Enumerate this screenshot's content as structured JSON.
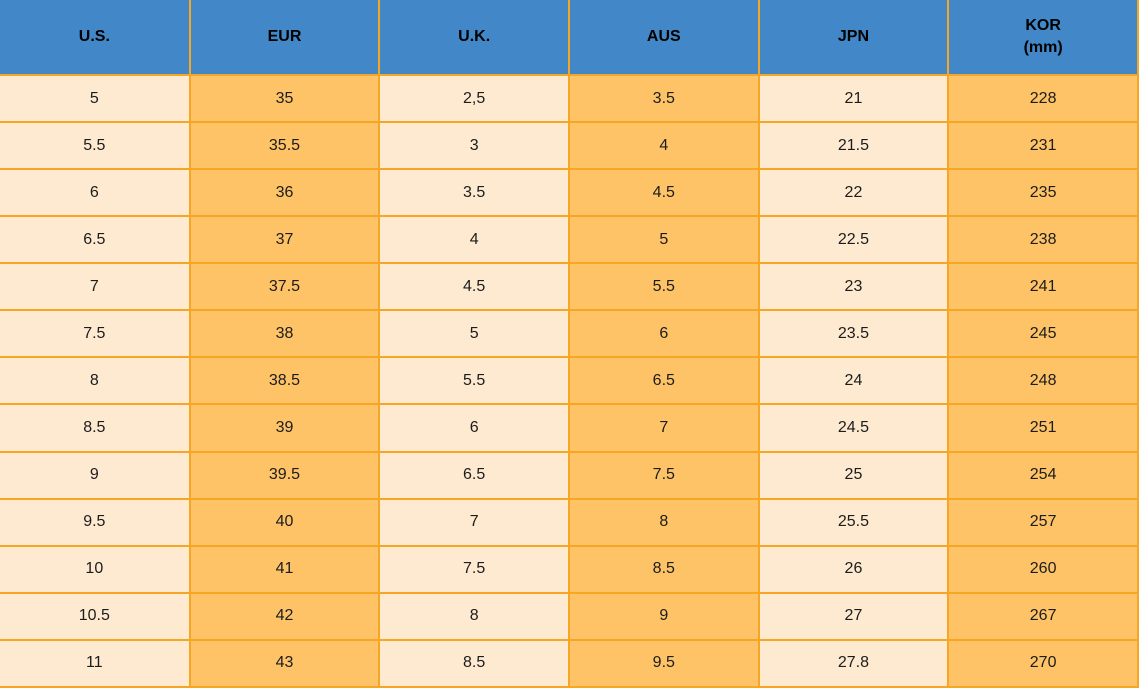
{
  "chart_data": {
    "type": "table",
    "columns": [
      {
        "id": "us",
        "label": "U.S.",
        "lines": [
          "U.S."
        ]
      },
      {
        "id": "eur",
        "label": "EUR",
        "lines": [
          "EUR"
        ]
      },
      {
        "id": "uk",
        "label": "U.K.",
        "lines": [
          "U.K."
        ]
      },
      {
        "id": "aus",
        "label": "AUS",
        "lines": [
          "AUS"
        ]
      },
      {
        "id": "jpn",
        "label": "JPN",
        "lines": [
          "JPN"
        ]
      },
      {
        "id": "kor",
        "label": "KOR (mm)",
        "lines": [
          "KOR",
          "(mm)"
        ]
      }
    ],
    "rows": [
      [
        "5",
        "35",
        "2,5",
        "3.5",
        "21",
        "228"
      ],
      [
        "5.5",
        "35.5",
        "3",
        "4",
        "21.5",
        "231"
      ],
      [
        "6",
        "36",
        "3.5",
        "4.5",
        "22",
        "235"
      ],
      [
        "6.5",
        "37",
        "4",
        "5",
        "22.5",
        "238"
      ],
      [
        "7",
        "37.5",
        "4.5",
        "5.5",
        "23",
        "241"
      ],
      [
        "7.5",
        "38",
        "5",
        "6",
        "23.5",
        "245"
      ],
      [
        "8",
        "38.5",
        "5.5",
        "6.5",
        "24",
        "248"
      ],
      [
        "8.5",
        "39",
        "6",
        "7",
        "24.5",
        "251"
      ],
      [
        "9",
        "39.5",
        "6.5",
        "7.5",
        "25",
        "254"
      ],
      [
        "9.5",
        "40",
        "7",
        "8",
        "25.5",
        "257"
      ],
      [
        "10",
        "41",
        "7.5",
        "8.5",
        "26",
        "260"
      ],
      [
        "10.5",
        "42",
        "8",
        "9",
        "27",
        "267"
      ],
      [
        "11",
        "43",
        "8.5",
        "9.5",
        "27.8",
        "270"
      ]
    ],
    "layout": {
      "column_fill_pattern": [
        "cream",
        "orange",
        "cream",
        "orange",
        "cream",
        "orange"
      ],
      "grid": true,
      "outer_border_edges": [
        "right",
        "bottom"
      ]
    }
  },
  "colors": {
    "header_bg": "#4288c8",
    "column_cream": "#fdead0",
    "column_orange": "#fec367",
    "border": "#f6a623",
    "header_text": "#000000",
    "body_text": "#1c1c1c"
  }
}
